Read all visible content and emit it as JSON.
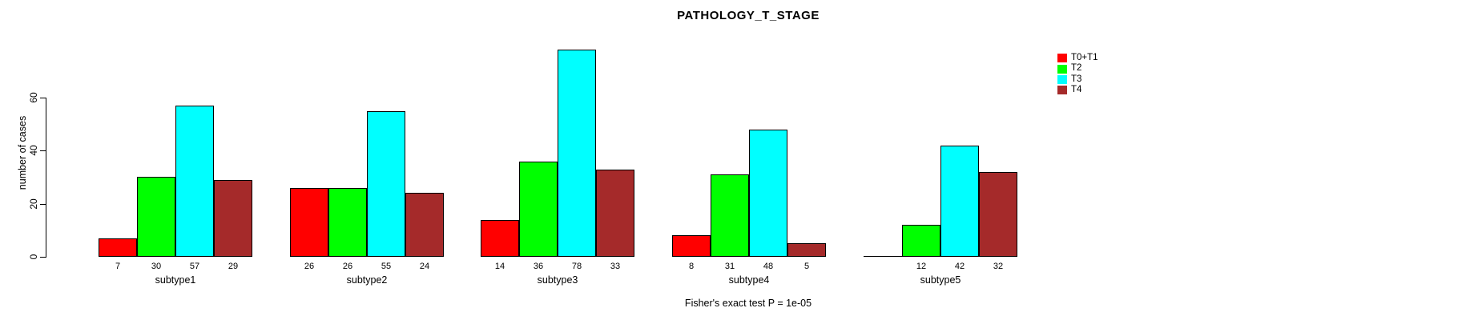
{
  "title": "PATHOLOGY_T_STAGE",
  "y_axis": {
    "label": "number of cases",
    "ticks": [
      0,
      20,
      40,
      60
    ]
  },
  "annotation": "Fisher's exact test P = 1e-05",
  "legend": {
    "entries": [
      {
        "label": "T0+T1",
        "color": "#ff0000"
      },
      {
        "label": "T2",
        "color": "#00ff00"
      },
      {
        "label": "T3",
        "color": "#00ffff"
      },
      {
        "label": "T4",
        "color": "#a52a2a"
      }
    ]
  },
  "chart_data": {
    "type": "bar",
    "title": "PATHOLOGY_T_STAGE",
    "xlabel": "",
    "ylabel": "number of cases",
    "categories": [
      "subtype1",
      "subtype2",
      "subtype3",
      "subtype4",
      "subtype5"
    ],
    "series": [
      {
        "name": "T0+T1",
        "color": "#ff0000",
        "values": [
          7,
          26,
          14,
          8,
          0
        ]
      },
      {
        "name": "T2",
        "color": "#00ff00",
        "values": [
          30,
          26,
          36,
          31,
          12
        ]
      },
      {
        "name": "T3",
        "color": "#00ffff",
        "values": [
          57,
          55,
          78,
          48,
          42
        ]
      },
      {
        "name": "T4",
        "color": "#a52a2a",
        "values": [
          29,
          24,
          33,
          5,
          32
        ]
      }
    ],
    "yticks": [
      0,
      20,
      40,
      60
    ],
    "ylim": [
      0,
      80
    ],
    "grid": false,
    "bar_value_labels": true,
    "hide_zero_value_labels": true,
    "legend_position": "right-top",
    "footnote": "Fisher's exact test P = 1e-05"
  }
}
